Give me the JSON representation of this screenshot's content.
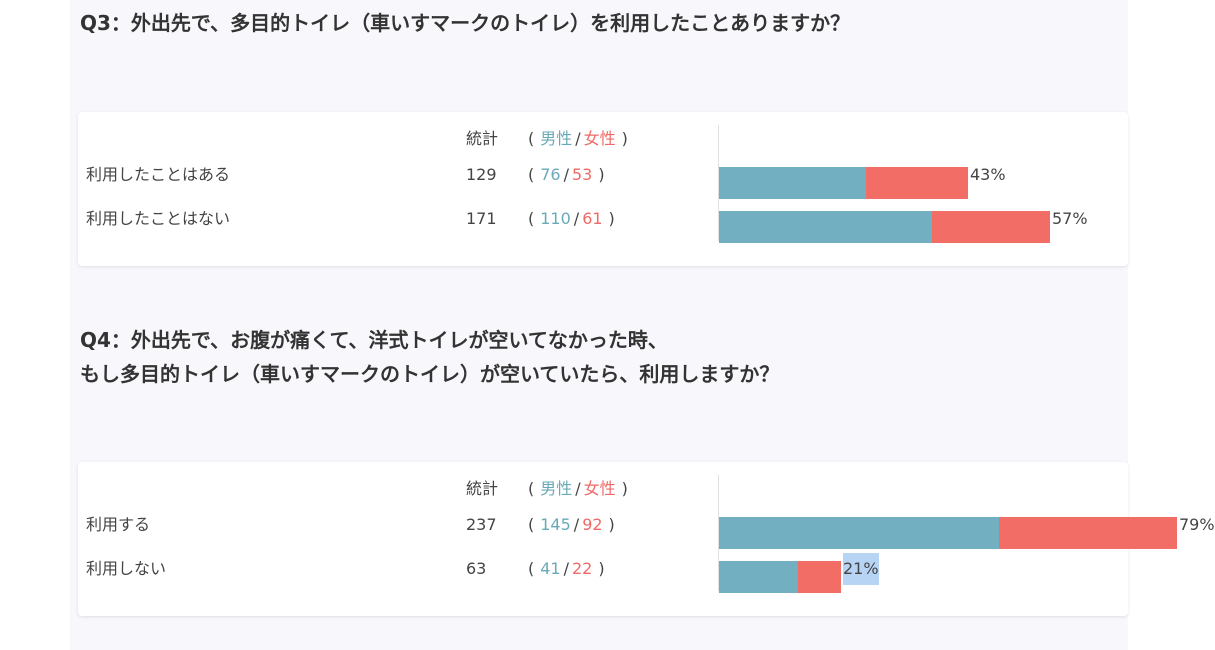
{
  "questions": [
    {
      "title": "Q3：外出先で、多目的トイレ（車いすマークのトイレ）を利用したことありますか？",
      "header": {
        "total_label": "統計",
        "male_label": "男性",
        "female_label": "女性",
        "open": "(",
        "slash": "/",
        "close": ")"
      },
      "rows": [
        {
          "label": "利用したことはある",
          "total": "129",
          "male": "76",
          "female": "53",
          "percent": "43%",
          "male_share": 76,
          "female_share": 53
        },
        {
          "label": "利用したことはない",
          "total": "171",
          "male": "110",
          "female": "61",
          "percent": "57%",
          "male_share": 110,
          "female_share": 61
        }
      ]
    },
    {
      "title_line1": "Q4：外出先で、お腹が痛くて、洋式トイレが空いてなかった時、",
      "title_line2": "もし多目的トイレ（車いすマークのトイレ）が空いていたら、利用しますか？",
      "header": {
        "total_label": "統計",
        "male_label": "男性",
        "female_label": "女性",
        "open": "(",
        "slash": "/",
        "close": ")"
      },
      "rows": [
        {
          "label": "利用する",
          "total": "237",
          "male": "145",
          "female": "92",
          "percent": "79%",
          "male_share": 145,
          "female_share": 92
        },
        {
          "label": "利用しない",
          "total": "63",
          "male": "41",
          "female": "22",
          "percent": "21%",
          "male_share": 41,
          "female_share": 22
        }
      ]
    }
  ],
  "colors": {
    "male": "#72b0c1",
    "female": "#f36d67",
    "highlight": "#b7d4f5"
  }
}
